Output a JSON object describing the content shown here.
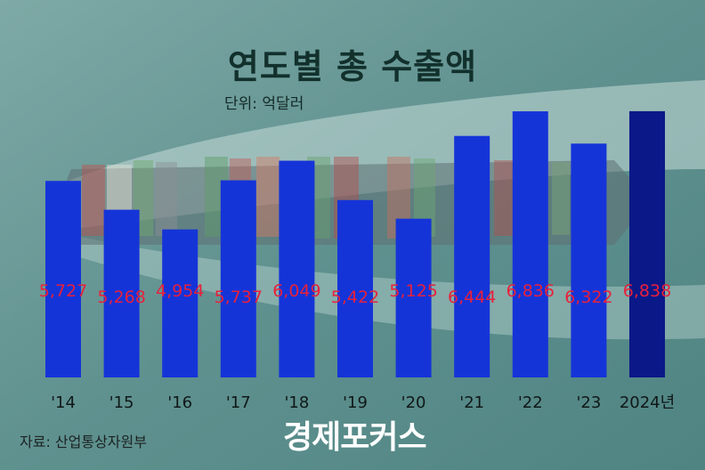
{
  "colors": {
    "bar": "#1534d8",
    "bar_highlight": "#0b1888",
    "value_label": "#e8203c"
  },
  "header": {
    "unit": "단위: 억달러"
  },
  "footer": {
    "source": "자료: 산업통상자원부",
    "brand": "경제포커스"
  },
  "chart_data": {
    "type": "bar",
    "title": "연도별 총 수출액",
    "categories": [
      "'14",
      "'15",
      "'16",
      "'17",
      "'18",
      "'19",
      "'20",
      "'21",
      "'22",
      "'23",
      "2024년"
    ],
    "value_labels": [
      "5,727",
      "5,268",
      "4,954",
      "5,737",
      "6,049",
      "5,422",
      "5,125",
      "6,444",
      "6,836",
      "6,322",
      "6,838"
    ],
    "values": [
      5727,
      5268,
      4954,
      5737,
      6049,
      5422,
      5125,
      6444,
      6836,
      6322,
      6838
    ],
    "unit": "억달러",
    "highlight_index": 10,
    "grid": false,
    "legend": "none"
  }
}
